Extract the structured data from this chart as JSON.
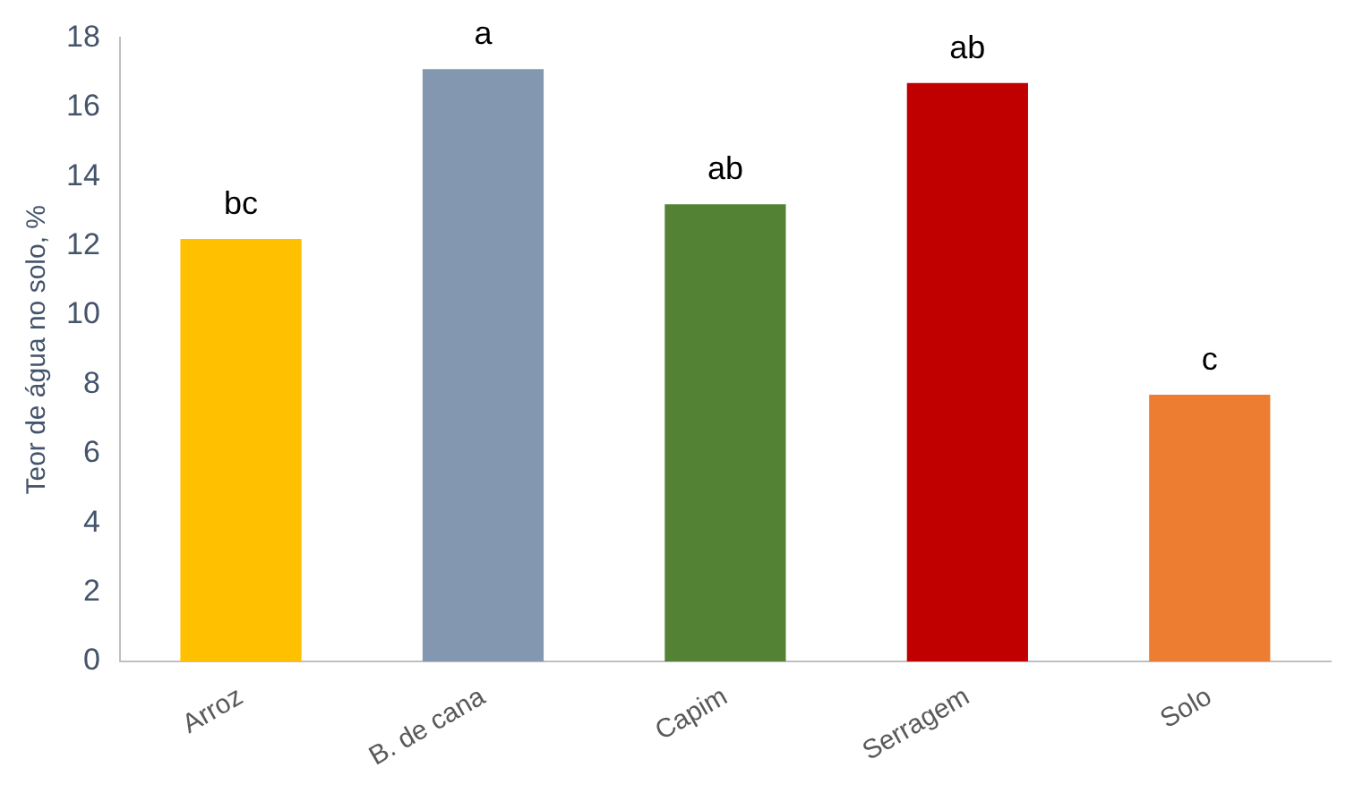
{
  "chart_data": {
    "type": "bar",
    "ylabel": "Teor de água no solo, %",
    "categories": [
      "Arroz",
      "B. de cana",
      "Capim",
      "Serragem",
      "Solo"
    ],
    "values": [
      12.2,
      17.1,
      13.2,
      16.7,
      7.7
    ],
    "colors": [
      "#ffc000",
      "#8497b0",
      "#548235",
      "#c00000",
      "#ed7d31"
    ],
    "ylim": [
      0,
      18
    ],
    "yticks": [
      0,
      2,
      4,
      6,
      8,
      10,
      12,
      14,
      16,
      18
    ],
    "grid": false,
    "annotations": [
      {
        "text": "bc",
        "x": "Arroz",
        "y": 12.2
      },
      {
        "text": "a",
        "x": "B. de cana",
        "y": 17.1
      },
      {
        "text": "ab",
        "x": "Capim",
        "y": 13.2
      },
      {
        "text": "ab",
        "x": "Serragem",
        "y": 16.7
      },
      {
        "text": "c",
        "x": "Solo",
        "y": 7.7
      }
    ]
  }
}
